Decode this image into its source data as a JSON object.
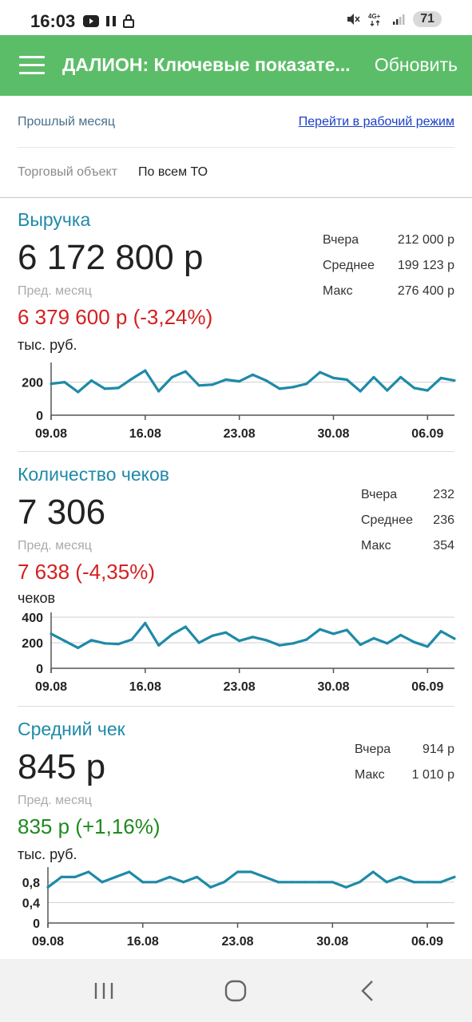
{
  "status_bar": {
    "time": "16:03",
    "battery": "71"
  },
  "app_bar": {
    "title": "ДАЛИОН: Ключевые показате...",
    "refresh_label": "Обновить"
  },
  "filters": {
    "period": "Прошлый месяц",
    "work_mode_link": "Перейти в рабочий режим",
    "object_label": "Торговый объект",
    "object_value": "По всем ТО"
  },
  "cards": [
    {
      "title": "Выручка",
      "value": "6 172 800 р",
      "prev_label": "Пред. месяц",
      "prev_value": "6 379 600 р (-3,24%)",
      "trend": "down",
      "unit": "тыс. руб.",
      "stats": [
        {
          "label": "Вчера",
          "value": "212 000 р"
        },
        {
          "label": "Среднее",
          "value": "199 123 р"
        },
        {
          "label": "Макс",
          "value": "276 400 р"
        }
      ]
    },
    {
      "title": "Количество чеков",
      "value": "7 306",
      "prev_label": "Пред. месяц",
      "prev_value": "7 638 (-4,35%)",
      "trend": "down",
      "unit": "чеков",
      "stats": [
        {
          "label": "Вчера",
          "value": "232"
        },
        {
          "label": "Среднее",
          "value": "236"
        },
        {
          "label": "Макс",
          "value": "354"
        }
      ]
    },
    {
      "title": "Средний чек",
      "value": "845 р",
      "prev_label": "Пред. месяц",
      "prev_value": "835 р (+1,16%)",
      "trend": "up",
      "unit": "тыс. руб.",
      "stats": [
        {
          "label": "Вчера",
          "value": "914 р"
        },
        {
          "label": "Макс",
          "value": "1 010 р"
        }
      ]
    }
  ],
  "colors": {
    "accent": "#5cbd69",
    "line": "#1f8aa8",
    "negative": "#d42020",
    "positive": "#1f8a1f"
  },
  "chart_data": [
    {
      "type": "line",
      "x_ticks": [
        "09.08",
        "16.08",
        "23.08",
        "30.08",
        "06.09"
      ],
      "y_ticks": [
        "0",
        "200"
      ],
      "ylim": [
        0,
        290
      ],
      "values": [
        190,
        200,
        140,
        210,
        160,
        165,
        220,
        270,
        145,
        230,
        265,
        180,
        185,
        215,
        205,
        245,
        210,
        160,
        170,
        190,
        260,
        225,
        215,
        145,
        230,
        150,
        230,
        165,
        150,
        225,
        210
      ]
    },
    {
      "type": "line",
      "x_ticks": [
        "09.08",
        "16.08",
        "23.08",
        "30.08",
        "06.09"
      ],
      "y_ticks": [
        "0",
        "200",
        "400"
      ],
      "ylim": [
        0,
        400
      ],
      "values": [
        270,
        215,
        160,
        220,
        195,
        190,
        225,
        354,
        180,
        265,
        325,
        200,
        255,
        280,
        215,
        245,
        220,
        180,
        195,
        225,
        305,
        270,
        300,
        185,
        235,
        195,
        260,
        205,
        170,
        290,
        232
      ]
    },
    {
      "type": "line",
      "x_ticks": [
        "09.08",
        "16.08",
        "23.08",
        "30.08",
        "06.09"
      ],
      "y_ticks": [
        "0",
        "0,4",
        "0,8"
      ],
      "ylim": [
        0,
        1.0
      ],
      "values": [
        0.7,
        0.9,
        0.9,
        1.0,
        0.8,
        0.9,
        1.0,
        0.8,
        0.8,
        0.9,
        0.8,
        0.9,
        0.7,
        0.8,
        1.0,
        1.0,
        0.9,
        0.8,
        0.8,
        0.8,
        0.8,
        0.8,
        0.7,
        0.8,
        1.0,
        0.8,
        0.9,
        0.8,
        0.8,
        0.8,
        0.9
      ]
    }
  ]
}
